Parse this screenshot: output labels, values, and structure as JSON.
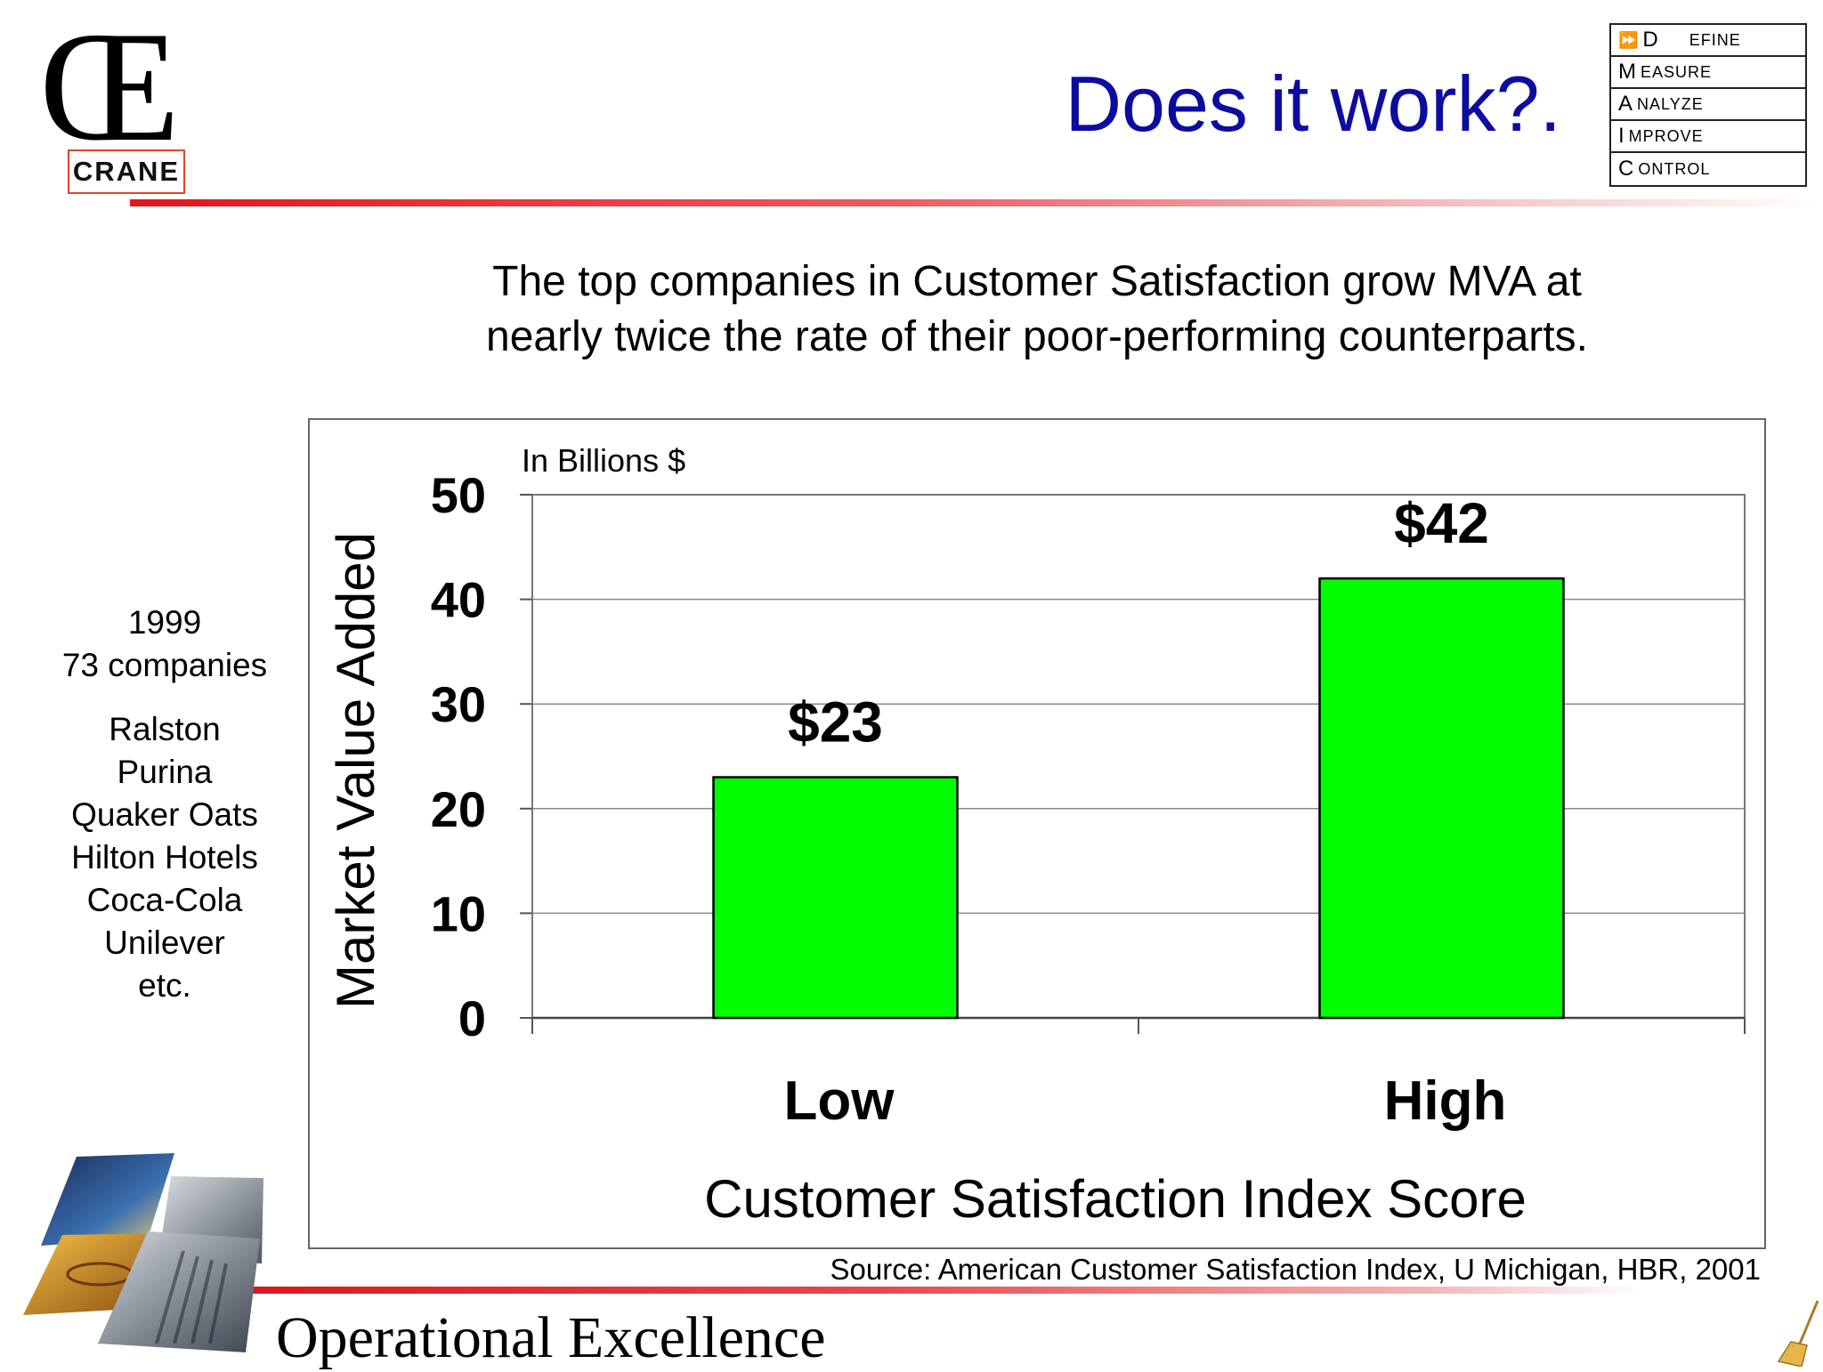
{
  "logo": {
    "mark": "Œ",
    "company": "CRANE"
  },
  "title": "Does it work?.",
  "dmaic": [
    {
      "prefix": "⏩",
      "initial": "D",
      "rest": "EFINE"
    },
    {
      "prefix": "",
      "initial": "M",
      "rest": "EASURE"
    },
    {
      "prefix": "",
      "initial": "A",
      "rest": "NALYZE"
    },
    {
      "prefix": "",
      "initial": "I",
      "rest": "MPROVE"
    },
    {
      "prefix": "",
      "initial": "C",
      "rest": "ONTROL"
    }
  ],
  "subtitle": {
    "line1": "The top companies in Customer Satisfaction grow MVA at",
    "line2": "nearly twice the rate of their poor-performing counterparts."
  },
  "side_notes": {
    "year": "1999",
    "count": "73 companies",
    "companies": [
      "Ralston",
      "Purina",
      "Quaker Oats",
      "Hilton Hotels",
      "Coca-Cola",
      "Unilever",
      "etc."
    ]
  },
  "chart_data": {
    "type": "bar",
    "categories": [
      "Low",
      "High"
    ],
    "values": [
      23,
      42
    ],
    "data_labels": [
      "$23",
      "$42"
    ],
    "title": "",
    "units_note": "In Billions $",
    "xlabel": "Customer Satisfaction Index Score",
    "ylabel": "Market Value Added",
    "ylim": [
      0,
      50
    ],
    "yticks": [
      0,
      10,
      20,
      30,
      40,
      50
    ],
    "grid": true,
    "legend": "none",
    "bar_color": "#00ff00"
  },
  "source": "Source:  American Customer Satisfaction Index, U Michigan, HBR, 2001",
  "footer": {
    "text": "Operational Excellence"
  },
  "colors": {
    "title": "#0c0ca0",
    "accent_rule": "#e4141b",
    "bar": "#00ff00"
  },
  "icons": {
    "collage": "photo-collage-icon",
    "broom": "broom-icon"
  }
}
